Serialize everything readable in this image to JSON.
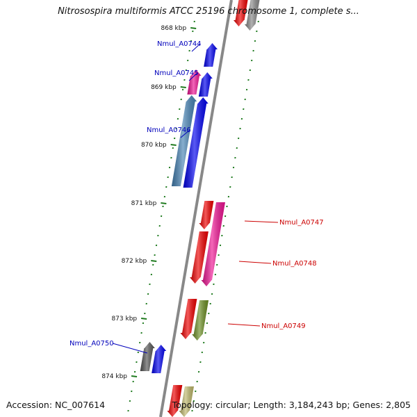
{
  "title": "Nitrosospira multiformis ATCC 25196 chromosome 1, complete s...",
  "footer": {
    "accession": "Accession: NC_007614",
    "topology": "Topology: circular; Length: 3,184,243 bp; Genes: 2,805"
  },
  "colors": {
    "backbone": "#888888",
    "scale_ticks": "#1e7a1e",
    "left_labels": "#0000bb",
    "right_labels": "#cc0000"
  },
  "scale": {
    "ticks": [
      {
        "label": "868 kbp"
      },
      {
        "label": "869 kbp"
      },
      {
        "label": "870 kbp"
      },
      {
        "label": "871 kbp"
      },
      {
        "label": "872 kbp"
      },
      {
        "label": "873 kbp"
      },
      {
        "label": "874 kbp"
      }
    ]
  },
  "genes": [
    {
      "name": "",
      "color": "#ee0000",
      "lane": "right-inner",
      "strand": "reverse"
    },
    {
      "name": "",
      "color": "#888888",
      "lane": "right-outer",
      "strand": "reverse"
    },
    {
      "name": "Nmul_A0744",
      "color": "#0000ee",
      "lane": "left-inner",
      "strand": "forward"
    },
    {
      "name": "Nmul_A0745",
      "color": "#ee1493",
      "lane": "left-outer",
      "strand": "forward"
    },
    {
      "name": "",
      "color": "#0000ee",
      "lane": "left-inner",
      "strand": "forward"
    },
    {
      "name": "Nmul_A0746",
      "color": "#4682b4",
      "lane": "left-outer",
      "strand": "forward"
    },
    {
      "name": "",
      "color": "#0000ee",
      "lane": "left-inner",
      "strand": "forward"
    },
    {
      "name": "Nmul_A0747",
      "color": "#ee0000",
      "lane": "right-inner",
      "strand": "reverse"
    },
    {
      "name": "",
      "color": "#ee1493",
      "lane": "right-outer",
      "strand": "reverse"
    },
    {
      "name": "Nmul_A0748",
      "color": "#ee0000",
      "lane": "right-inner",
      "strand": "reverse"
    },
    {
      "name": "Nmul_A0749",
      "color": "#ee0000",
      "lane": "right-inner",
      "strand": "reverse"
    },
    {
      "name": "",
      "color": "#6b8e23",
      "lane": "right-outer",
      "strand": "reverse"
    },
    {
      "name": "Nmul_A0750",
      "color": "#555555",
      "lane": "left-outer",
      "strand": "forward"
    },
    {
      "name": "",
      "color": "#0000ee",
      "lane": "left-inner",
      "strand": "forward"
    },
    {
      "name": "",
      "color": "#ee0000",
      "lane": "right-inner",
      "strand": "reverse"
    },
    {
      "name": "",
      "color": "#bdb76b",
      "lane": "right-outer",
      "strand": "reverse"
    }
  ]
}
